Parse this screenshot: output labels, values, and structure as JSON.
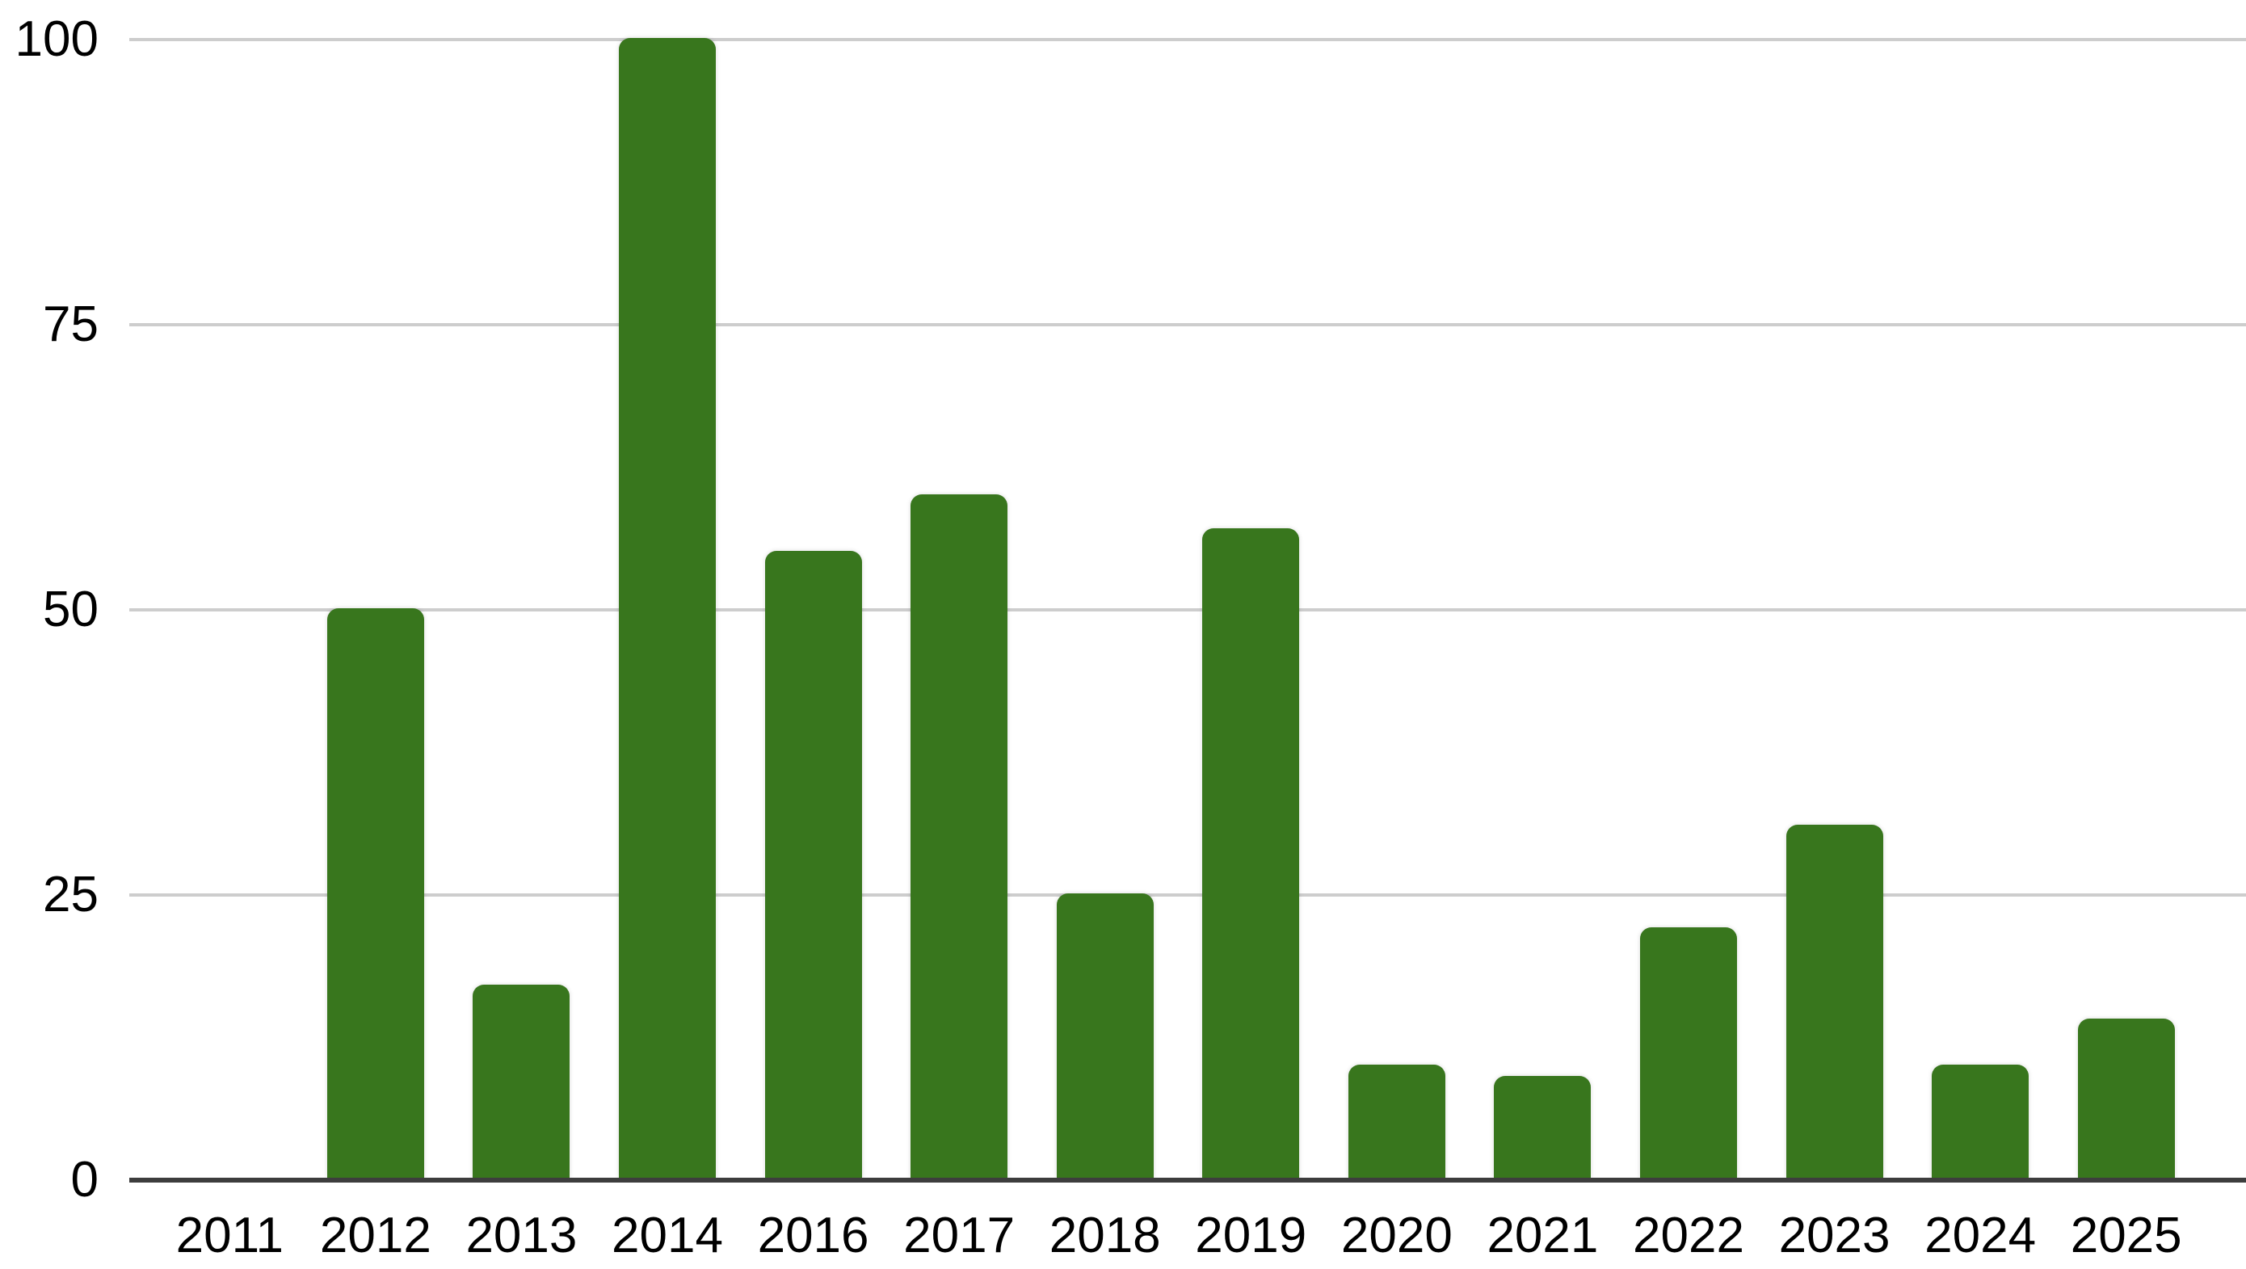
{
  "chart_data": {
    "type": "bar",
    "title": "",
    "xlabel": "",
    "ylabel": "",
    "categories": [
      "2011",
      "2012",
      "2013",
      "2014",
      "2016",
      "2017",
      "2018",
      "2019",
      "2020",
      "2021",
      "2022",
      "2023",
      "2024",
      "2025"
    ],
    "values": [
      0,
      50,
      17,
      100,
      55,
      60,
      25,
      57,
      10,
      9,
      22,
      31,
      10,
      14
    ],
    "ylim": [
      0,
      100
    ],
    "yticks": [
      0,
      25,
      50,
      75,
      100
    ],
    "ytick_labels": [
      "0",
      "25",
      "50",
      "75",
      "100"
    ],
    "grid": true,
    "legend": false,
    "bar_color": "#38761d",
    "background_color": "#ffffff",
    "gridline_color": "#cdcdcd",
    "axis_line_color": "#3d3d3d",
    "tick_label_color": "#000000"
  }
}
